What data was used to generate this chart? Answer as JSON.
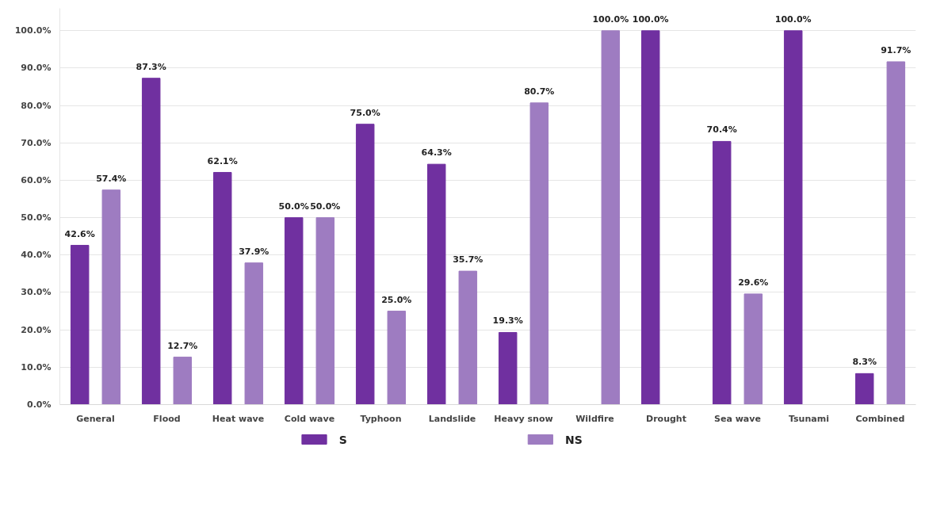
{
  "chart_data": {
    "type": "bar",
    "categories": [
      "General",
      "Flood",
      "Heat wave",
      "Cold wave",
      "Typhoon",
      "Landslide",
      "Heavy snow",
      "Wildfire",
      "Drought",
      "Sea wave",
      "Tsunami",
      "Combined"
    ],
    "series": [
      {
        "name": "S",
        "color": "#7030a0",
        "values": [
          42.6,
          87.3,
          62.1,
          50.0,
          75.0,
          64.3,
          19.3,
          null,
          100.0,
          70.4,
          100.0,
          8.3
        ],
        "value_labels": [
          "42.6%",
          "87.3%",
          "62.1%",
          "50.0%",
          "75.0%",
          "64.3%",
          "19.3%",
          null,
          "100.0%",
          "70.4%",
          "100.0%",
          "8.3%"
        ]
      },
      {
        "name": "NS",
        "color": "#9e7cc1",
        "values": [
          57.4,
          12.7,
          37.9,
          50.0,
          25.0,
          35.7,
          80.7,
          100.0,
          null,
          29.6,
          null,
          91.7
        ],
        "value_labels": [
          "57.4%",
          "12.7%",
          "37.9%",
          "50.0%",
          "25.0%",
          "35.7%",
          "80.7%",
          "100.0%",
          null,
          "29.6%",
          null,
          "91.7%"
        ]
      }
    ],
    "ylim": [
      0,
      106
    ],
    "yticks": [
      {
        "value": 0,
        "label": "0.0%"
      },
      {
        "value": 10,
        "label": "10.0%"
      },
      {
        "value": 20,
        "label": "20.0%"
      },
      {
        "value": 30,
        "label": "30.0%"
      },
      {
        "value": 40,
        "label": "40.0%"
      },
      {
        "value": 50,
        "label": "50.0%"
      },
      {
        "value": 60,
        "label": "60.0%"
      },
      {
        "value": 70,
        "label": "70.0%"
      },
      {
        "value": 80,
        "label": "80.0%"
      },
      {
        "value": 90,
        "label": "90.0%"
      },
      {
        "value": 100,
        "label": "100.0%"
      }
    ],
    "grid": "y",
    "legend": "bottom"
  }
}
